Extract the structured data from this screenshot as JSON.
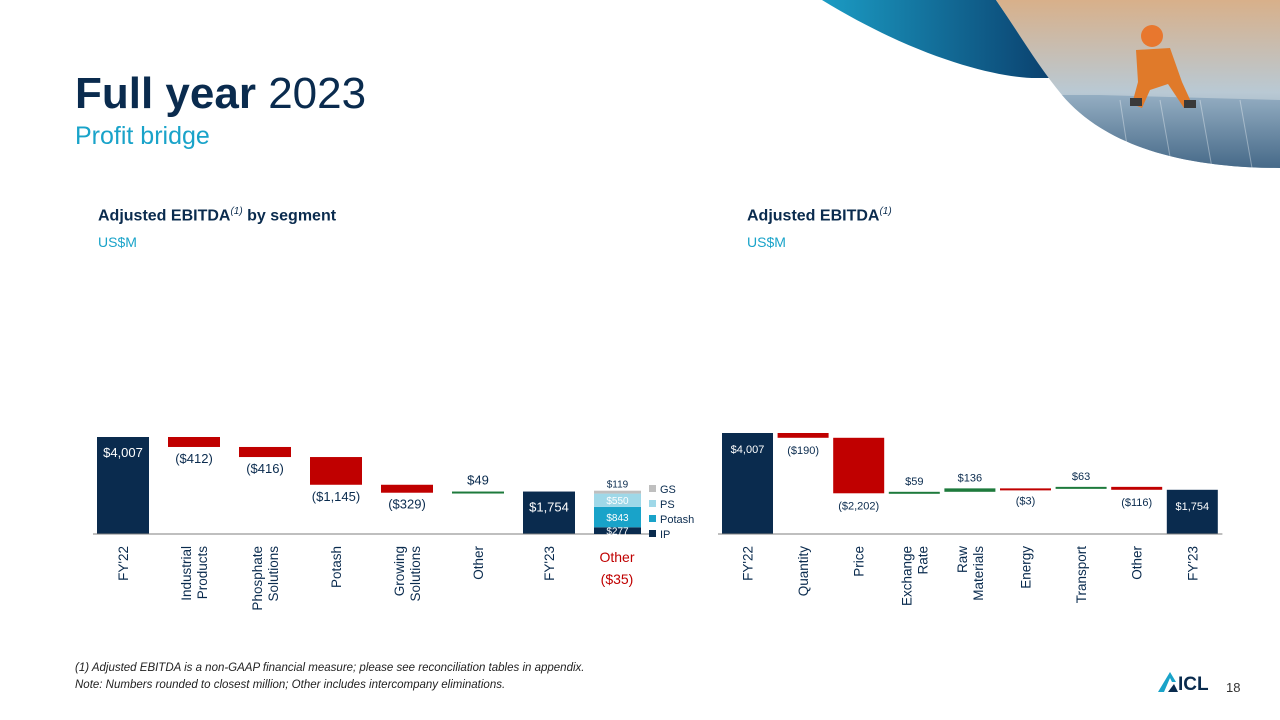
{
  "slide": {
    "title_bold": "Full year",
    "title_regular": "2023",
    "subtitle": "Profit bridge",
    "page_number": "18",
    "footnote_1": "(1) Adjusted EBITDA is a non-GAAP financial measure; please see reconciliation tables in appendix.",
    "footnote_2": "Note: Numbers rounded to closest million; Other includes intercompany eliminations.",
    "logo_text": "ICL",
    "colors": {
      "navy": "#0a2b4e",
      "teal": "#19a3c9",
      "red": "#c00000",
      "green": "#1e7a3c"
    }
  },
  "chart_data": [
    {
      "type": "bar",
      "subtype": "waterfall",
      "title": "Adjusted EBITDA",
      "title_sup": "(1)",
      "title_suffix": " by segment",
      "unit": "US$M",
      "categories": [
        "FY'22",
        "Industrial Products",
        "Phosphate Solutions",
        "Potash",
        "Growing Solutions",
        "Other",
        "FY'23"
      ],
      "values": [
        4007,
        -412,
        -416,
        -1145,
        -329,
        49,
        1754
      ],
      "labels": [
        "$4,007",
        "($412)",
        "($416)",
        "($1,145)",
        "($329)",
        "$49",
        "$1,754"
      ],
      "kinds": [
        "total",
        "delta",
        "delta",
        "delta",
        "delta",
        "delta",
        "total"
      ],
      "extra_stack": {
        "label_line1": "Other",
        "label_line2": "($35)",
        "segments": [
          {
            "name": "IP",
            "value": 277,
            "label": "$277",
            "color": "#0a2b4e"
          },
          {
            "name": "Potash",
            "value": 843,
            "label": "$843",
            "color": "#19a3c9"
          },
          {
            "name": "PS",
            "value": 550,
            "label": "$550",
            "color": "#9fd8e8"
          },
          {
            "name": "GS",
            "value": 119,
            "label": "$119",
            "color": "#bfbfbf"
          }
        ],
        "legend_order": [
          "GS",
          "PS",
          "Potash",
          "IP"
        ]
      }
    },
    {
      "type": "bar",
      "subtype": "waterfall",
      "title": "Adjusted EBITDA",
      "title_sup": "(1)",
      "title_suffix": "",
      "unit": "US$M",
      "categories": [
        "FY'22",
        "Quantity",
        "Price",
        "Exchange Rate",
        "Raw Materials",
        "Energy",
        "Transport",
        "Other",
        "FY'23"
      ],
      "values": [
        4007,
        -190,
        -2202,
        59,
        136,
        -3,
        63,
        -116,
        1754
      ],
      "labels": [
        "$4,007",
        "($190)",
        "($2,202)",
        "$59",
        "$136",
        "($3)",
        "$63",
        "($116)",
        "$1,754"
      ],
      "kinds": [
        "total",
        "delta",
        "delta",
        "delta",
        "delta",
        "delta",
        "delta",
        "delta",
        "total"
      ]
    }
  ]
}
